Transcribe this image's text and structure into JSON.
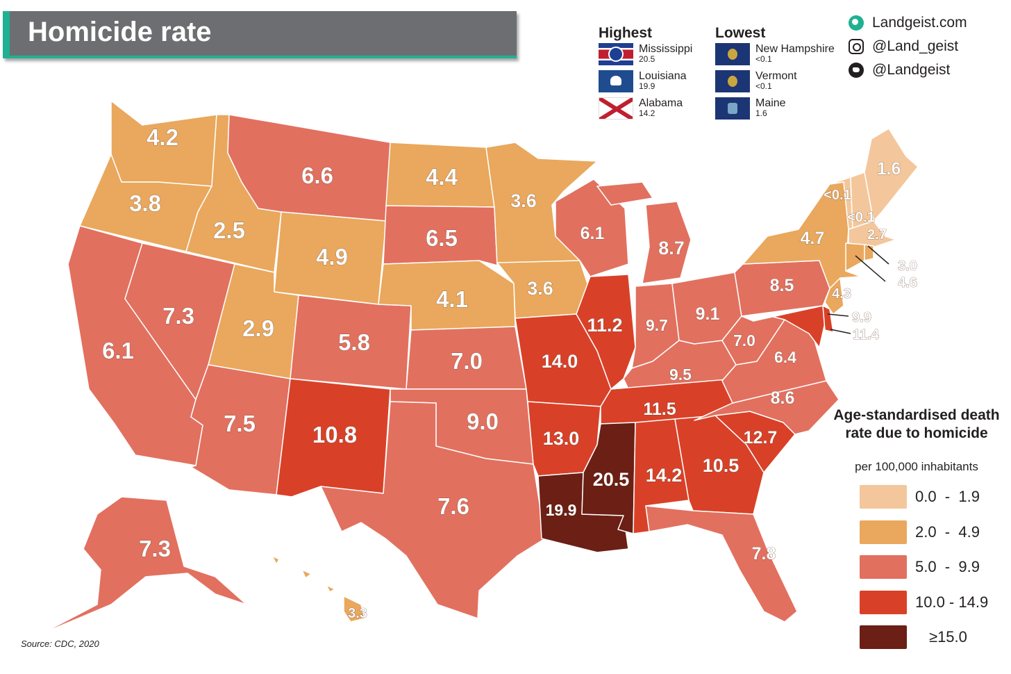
{
  "title": "Homicide rate",
  "brand": {
    "site": "Landgeist.com",
    "instagram": "@Land_geist",
    "twitter": "@Landgeist"
  },
  "highest": {
    "heading": "Highest",
    "items": [
      {
        "name": "Mississippi",
        "value": "20.5",
        "flag": "mississippi-flag"
      },
      {
        "name": "Louisiana",
        "value": "19.9",
        "flag": "louisiana-flag"
      },
      {
        "name": "Alabama",
        "value": "14.2",
        "flag": "alabama-flag"
      }
    ]
  },
  "lowest": {
    "heading": "Lowest",
    "items": [
      {
        "name": "New Hampshire",
        "value": "<0.1",
        "flag": "new-hampshire-flag"
      },
      {
        "name": "Vermont",
        "value": "<0.1",
        "flag": "vermont-flag"
      },
      {
        "name": "Maine",
        "value": "1.6",
        "flag": "maine-flag"
      }
    ]
  },
  "legend": {
    "title": "Age-standardised death rate due to homicide",
    "subtitle": "per 100,000 inhabitants",
    "bins": [
      {
        "label": "0.0  -  1.9",
        "color": "#f3c79b"
      },
      {
        "label": "2.0  -  4.9",
        "color": "#e9a85d"
      },
      {
        "label": "5.0  -  9.9",
        "color": "#e2705f"
      },
      {
        "label": "10.0 - 14.9",
        "color": "#d84128"
      },
      {
        "label": "≥15.0",
        "color": "#6b1f15"
      }
    ]
  },
  "source": "Source: CDC, 2020",
  "states": {
    "WA": "4.2",
    "OR": "3.8",
    "CA": "6.1",
    "ID": "2.5",
    "NV": "7.3",
    "MT": "6.6",
    "WY": "4.9",
    "UT": "2.9",
    "AZ": "7.5",
    "CO": "5.8",
    "NM": "10.8",
    "ND": "4.4",
    "SD": "6.5",
    "NE": "4.1",
    "KS": "7.0",
    "OK": "9.0",
    "TX": "7.6",
    "MN": "3.6",
    "IA": "3.6",
    "MO": "14.0",
    "AR": "13.0",
    "LA": "19.9",
    "WI": "6.1",
    "IL": "11.2",
    "MI": "8.7",
    "IN": "9.7",
    "OH": "9.1",
    "KY": "9.5",
    "TN": "11.5",
    "MS": "20.5",
    "AL": "14.2",
    "GA": "10.5",
    "FL": "7.8",
    "SC": "12.7",
    "NC": "8.6",
    "VA": "6.4",
    "WV": "7.0",
    "PA": "8.5",
    "NY": "4.7",
    "ME": "1.6",
    "VT": "<0.1",
    "NH": "<0.1",
    "MA": "2.7",
    "RI": "3.0",
    "CT": "4.6",
    "NJ": "4.3",
    "DE": "9.9",
    "MD": "11.4",
    "AK": "7.3",
    "HI": "3.3"
  }
}
